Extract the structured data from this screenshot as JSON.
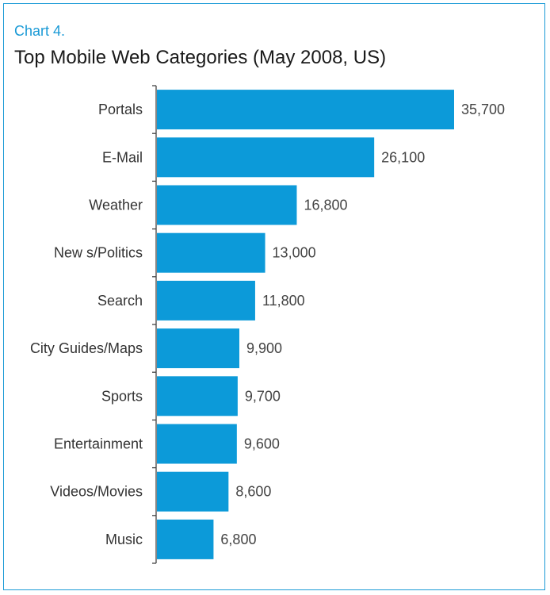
{
  "header": {
    "chart_label": "Chart 4.",
    "title": "Top Mobile Web Categories (May 2008, US)"
  },
  "colors": {
    "bar": "#0c9ad9",
    "frame": "#1a9ad6",
    "axis": "#444444"
  },
  "chart_data": {
    "type": "bar",
    "orientation": "horizontal",
    "title": "Top Mobile Web Categories (May 2008, US)",
    "categories": [
      "Portals",
      "E-Mail",
      "Weather",
      "New s/Politics",
      "Search",
      "City Guides/Maps",
      "Sports",
      "Entertainment",
      "Videos/Movies",
      "Music"
    ],
    "values": [
      35700,
      26100,
      16800,
      13000,
      11800,
      9900,
      9700,
      9600,
      8600,
      6800
    ],
    "value_labels": [
      "35,700",
      "26,100",
      "16,800",
      "13,000",
      "11,800",
      "9,900",
      "9,700",
      "9,600",
      "8,600",
      "6,800"
    ],
    "xlabel": "",
    "ylabel": "",
    "xlim": [
      0,
      40000
    ],
    "grid": false,
    "legend": "none"
  }
}
